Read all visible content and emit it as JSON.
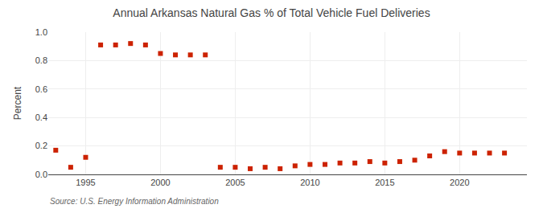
{
  "chart_data": {
    "type": "scatter",
    "title": "Annual Arkansas Natural Gas % of Total Vehicle Fuel Deliveries",
    "y_label": "Percent",
    "annotations": [
      "Source: U.S. Energy Information Administration"
    ],
    "x": [
      1993,
      1994,
      1995,
      1996,
      1997,
      1998,
      1999,
      2000,
      2001,
      2002,
      2003,
      2004,
      2005,
      2006,
      2007,
      2008,
      2009,
      2010,
      2011,
      2012,
      2013,
      2014,
      2015,
      2016,
      2017,
      2018,
      2019,
      2020,
      2021,
      2022,
      2023
    ],
    "values": [
      0.17,
      0.05,
      0.12,
      0.91,
      0.91,
      0.92,
      0.91,
      0.85,
      0.84,
      0.84,
      0.84,
      0.05,
      0.05,
      0.04,
      0.05,
      0.04,
      0.06,
      0.07,
      0.07,
      0.08,
      0.08,
      0.09,
      0.08,
      0.09,
      0.1,
      0.13,
      0.16,
      0.15,
      0.15,
      0.15,
      0.15
    ],
    "color": "#cc2200",
    "marker": "square",
    "xlim": [
      1992.5,
      2024.5
    ],
    "ylim": [
      0.0,
      1.0
    ],
    "xticks": [
      1995,
      2000,
      2005,
      2010,
      2015,
      2020
    ],
    "yticks": [
      {
        "value": 0.0,
        "label": "0.0"
      },
      0.2,
      0.4,
      0.6,
      0.8,
      {
        "value": 1.0,
        "label": "1.0"
      }
    ],
    "grid": true
  }
}
